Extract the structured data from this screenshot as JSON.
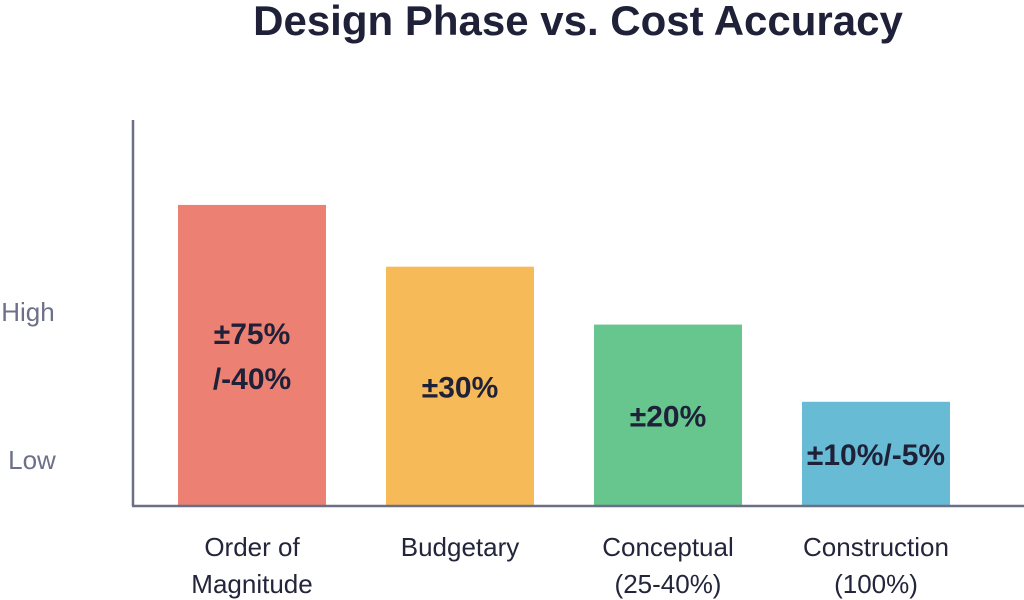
{
  "chart_data": {
    "type": "bar",
    "title": "Design Phase vs. Cost Accuracy",
    "xlabel": "",
    "ylabel": "",
    "y_tick_labels": [
      "High",
      "Low"
    ],
    "categories": [
      [
        "Order of",
        "Magnitude"
      ],
      [
        "Budgetary"
      ],
      [
        "Conceptual",
        "(25-40%)"
      ],
      [
        "Construction",
        "(100%)"
      ]
    ],
    "values": [
      78,
      62,
      47,
      27
    ],
    "ylim": [
      0,
      100
    ],
    "bar_labels": [
      [
        "±75%",
        "/-40%"
      ],
      [
        "±30%"
      ],
      [
        "±20%"
      ],
      [
        "±10%/-5%"
      ]
    ],
    "colors": [
      "#ec8072",
      "#f6bb58",
      "#66c68e",
      "#68bbd4"
    ],
    "axis_color": "#6b6f85",
    "grid": false,
    "legend": "none"
  }
}
